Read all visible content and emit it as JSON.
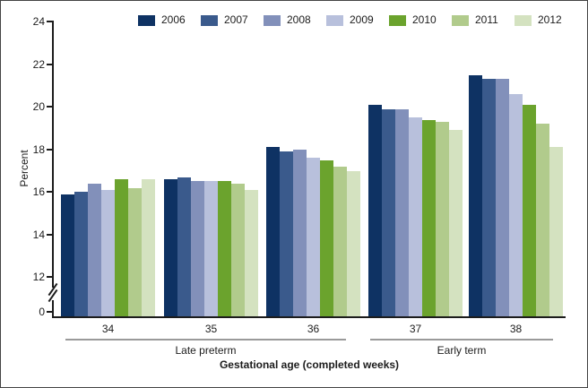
{
  "chart_data": {
    "type": "bar",
    "title": "",
    "ylabel": "Percent",
    "xlabel": "Gestational age (completed weeks)",
    "categories": [
      "34",
      "35",
      "36",
      "37",
      "38"
    ],
    "yticks": [
      24,
      22,
      20,
      18,
      16,
      14,
      12,
      0
    ],
    "ylim": [
      0,
      24
    ],
    "axis_break": {
      "between": [
        0,
        12
      ]
    },
    "grid": false,
    "legend_position": "top",
    "group_annotations": [
      {
        "label": "Late preterm",
        "spans": [
          "34",
          "35",
          "36"
        ]
      },
      {
        "label": "Early term",
        "spans": [
          "37",
          "38"
        ]
      }
    ],
    "series": [
      {
        "name": "2006",
        "color": "#0e3263",
        "values": [
          15.9,
          16.6,
          18.1,
          20.1,
          21.5
        ]
      },
      {
        "name": "2007",
        "color": "#3a5a8c",
        "values": [
          16.0,
          16.7,
          17.9,
          19.9,
          21.3
        ]
      },
      {
        "name": "2008",
        "color": "#8290ba",
        "values": [
          16.4,
          16.5,
          18.0,
          19.9,
          21.3
        ]
      },
      {
        "name": "2009",
        "color": "#b8c0dc",
        "values": [
          16.1,
          16.5,
          17.6,
          19.5,
          20.6
        ]
      },
      {
        "name": "2010",
        "color": "#6ba32d",
        "values": [
          16.6,
          16.5,
          17.5,
          19.4,
          20.1
        ]
      },
      {
        "name": "2011",
        "color": "#b1cb8c",
        "values": [
          16.2,
          16.4,
          17.2,
          19.3,
          19.2
        ]
      },
      {
        "name": "2012",
        "color": "#d4e2c0",
        "values": [
          16.6,
          16.1,
          17.0,
          18.9,
          18.1
        ]
      }
    ]
  }
}
